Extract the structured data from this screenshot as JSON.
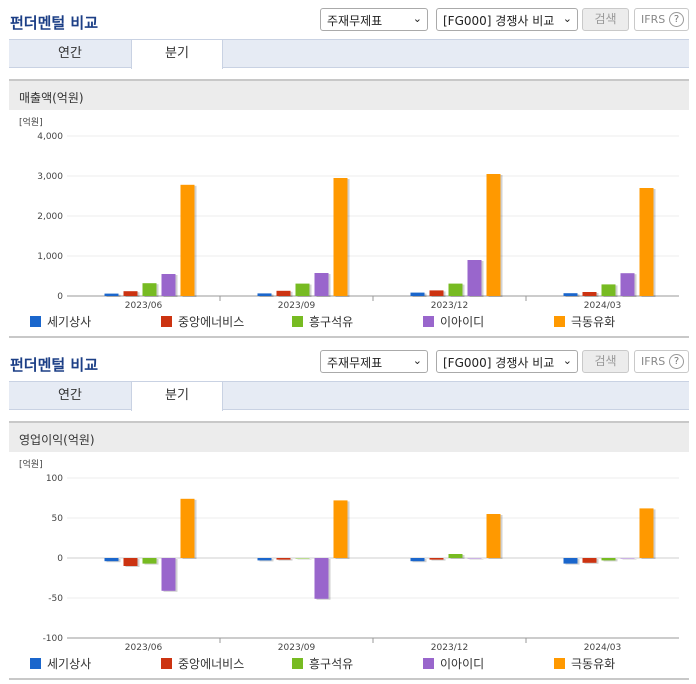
{
  "panels": [
    {
      "title": "펀더멘털 비교",
      "select1": "주재무제표",
      "select2": "[FG000] 경쟁사 비교",
      "search_label": "검색",
      "ifrs_label": "IFRS",
      "help_label": "?",
      "tabs": [
        "연간",
        "분기"
      ],
      "active_tab": "분기",
      "chart_title": "매출액(억원)",
      "chart_data": {
        "type": "bar",
        "unit_label": "[억원]",
        "categories": [
          "2023/06",
          "2023/09",
          "2023/12",
          "2024/03"
        ],
        "ylim": [
          0,
          4000
        ],
        "yticks": [
          0,
          1000,
          2000,
          3000,
          4000
        ],
        "ytick_labels": [
          "0",
          "1,000",
          "2,000",
          "3,000",
          "4,000"
        ],
        "grid": true,
        "series": [
          {
            "name": "세기상사",
            "color": "#1a66cc",
            "values": [
              60,
              65,
              85,
              70
            ]
          },
          {
            "name": "중앙에너비스",
            "color": "#cc3311",
            "values": [
              120,
              130,
              140,
              100
            ]
          },
          {
            "name": "흥구석유",
            "color": "#77bb22",
            "values": [
              320,
              310,
              310,
              290
            ]
          },
          {
            "name": "이아이디",
            "color": "#9966cc",
            "values": [
              550,
              575,
              900,
              570
            ]
          },
          {
            "name": "극동유화",
            "color": "#ff9900",
            "values": [
              2780,
              2950,
              3050,
              2700
            ]
          }
        ]
      }
    },
    {
      "title": "펀더멘털 비교",
      "select1": "주재무제표",
      "select2": "[FG000] 경쟁사 비교",
      "search_label": "검색",
      "ifrs_label": "IFRS",
      "help_label": "?",
      "tabs": [
        "연간",
        "분기"
      ],
      "active_tab": "분기",
      "chart_title": "영업이익(억원)",
      "chart_data": {
        "type": "bar",
        "unit_label": "[억원]",
        "categories": [
          "2023/06",
          "2023/09",
          "2023/12",
          "2024/03"
        ],
        "ylim": [
          -100,
          100
        ],
        "yticks": [
          -100,
          -50,
          0,
          50,
          100
        ],
        "ytick_labels": [
          "-100",
          "-50",
          "0",
          "50",
          "100"
        ],
        "grid": true,
        "series": [
          {
            "name": "세기상사",
            "color": "#1a66cc",
            "values": [
              -4,
              -3,
              -4,
              -7
            ]
          },
          {
            "name": "중앙에너비스",
            "color": "#cc3311",
            "values": [
              -10,
              -2,
              -2,
              -6
            ]
          },
          {
            "name": "흥구석유",
            "color": "#77bb22",
            "values": [
              -7,
              0,
              5,
              -3
            ]
          },
          {
            "name": "이아이디",
            "color": "#9966cc",
            "values": [
              -41,
              -51,
              0,
              0
            ]
          },
          {
            "name": "극동유화",
            "color": "#ff9900",
            "values": [
              74,
              72,
              55,
              62
            ]
          }
        ]
      }
    }
  ]
}
